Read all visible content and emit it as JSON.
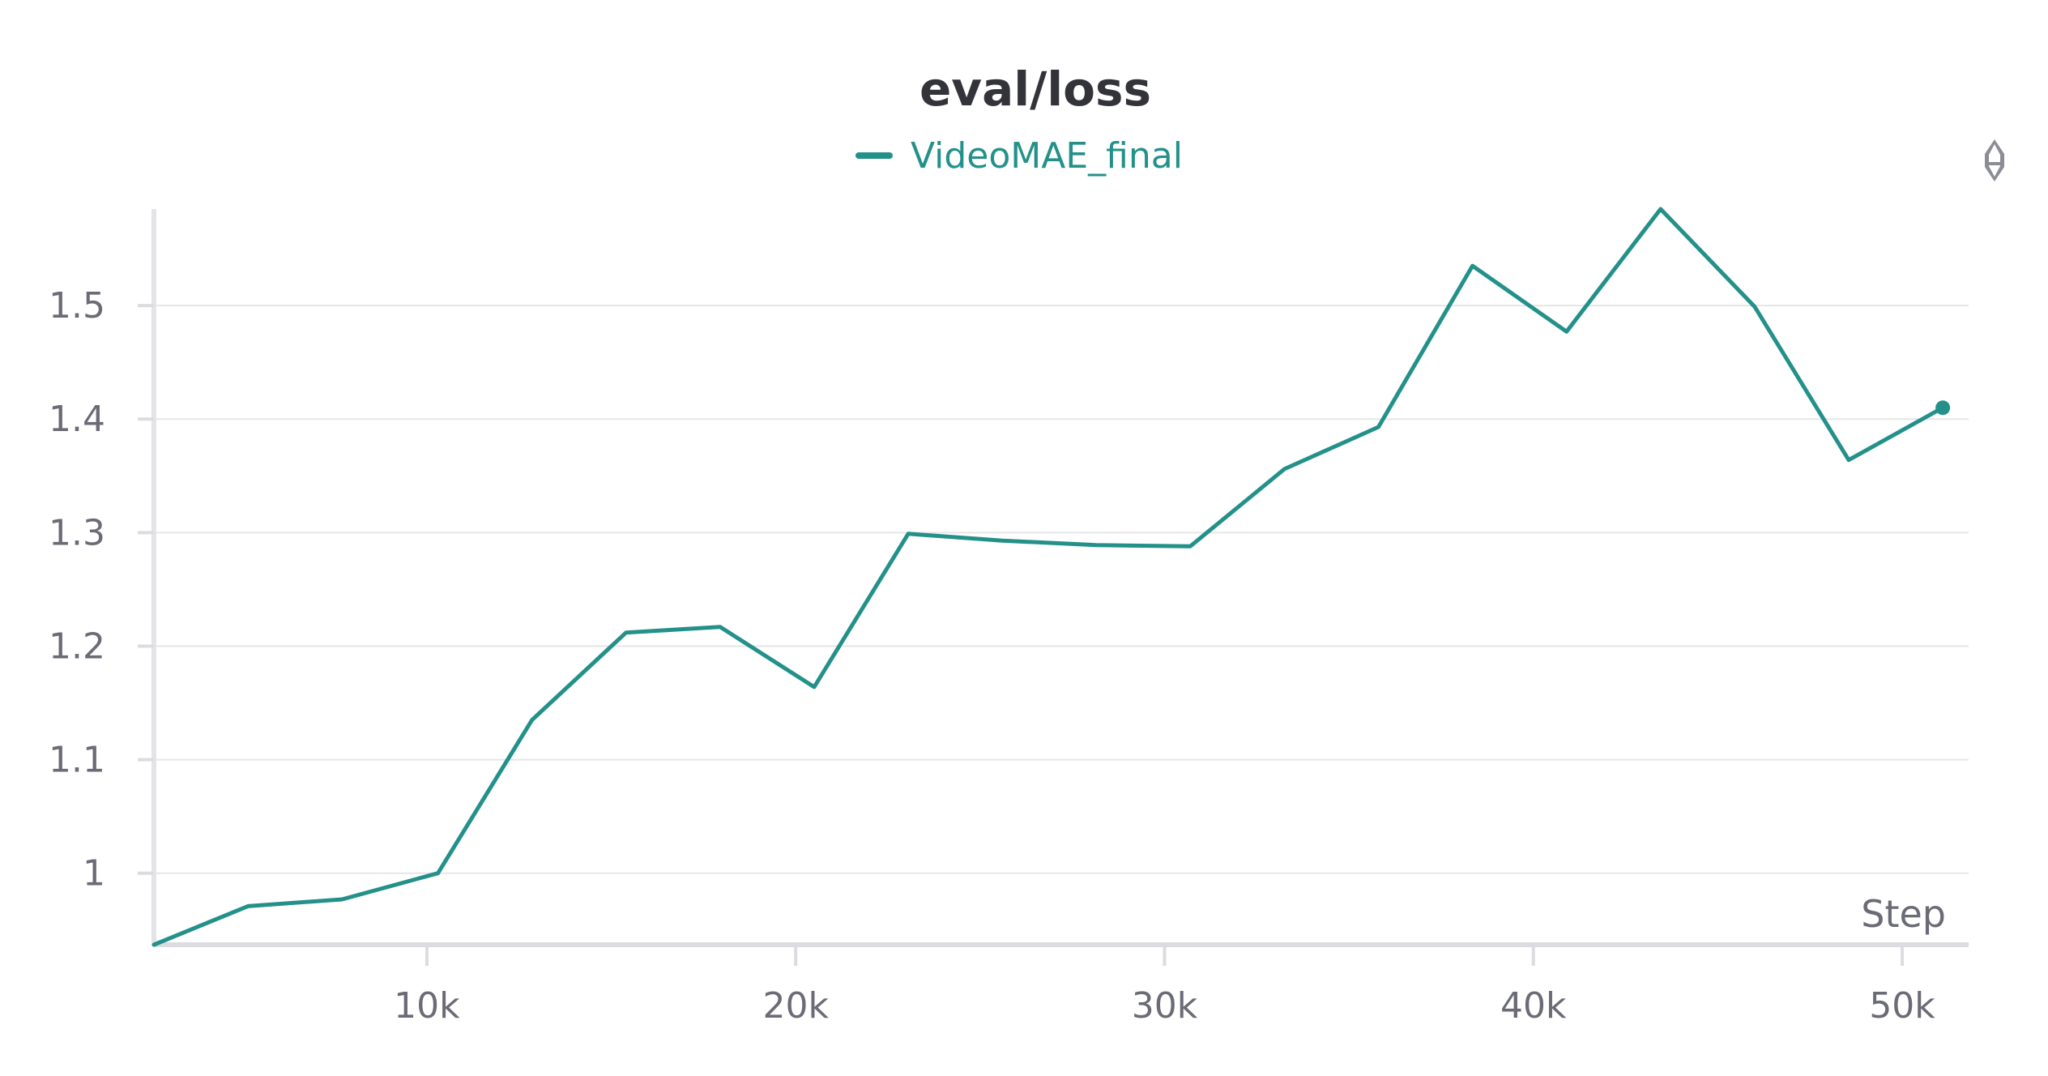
{
  "chart_data": {
    "type": "line",
    "title": "eval/loss",
    "xlabel": "Step",
    "ylabel": "",
    "xlim": [
      2600,
      51800
    ],
    "ylim": [
      0.937,
      1.585
    ],
    "x_ticks": [
      10000,
      20000,
      30000,
      40000,
      50000
    ],
    "x_tick_labels": [
      "10k",
      "20k",
      "30k",
      "40k",
      "50k"
    ],
    "y_ticks": [
      1.0,
      1.1,
      1.2,
      1.3,
      1.4,
      1.5
    ],
    "y_tick_labels": [
      "1",
      "1.1",
      "1.2",
      "1.3",
      "1.4",
      "1.5"
    ],
    "grid": true,
    "legend_position": "top-center",
    "series": [
      {
        "name": "VideoMAE_final",
        "color": "#23918a",
        "x": [
          2600,
          5150,
          7700,
          10300,
          12850,
          15400,
          17950,
          20500,
          23050,
          25600,
          28150,
          30700,
          33250,
          35800,
          38350,
          40900,
          43450,
          46000,
          48550,
          51100
        ],
        "y": [
          0.937,
          0.971,
          0.977,
          1.0,
          1.135,
          1.212,
          1.217,
          1.164,
          1.299,
          1.293,
          1.289,
          1.288,
          1.356,
          1.393,
          1.535,
          1.477,
          1.585,
          1.499,
          1.364,
          1.41
        ]
      }
    ]
  },
  "colors": {
    "series": "#23918a",
    "grid": "#e6e6e9",
    "axis": "#dcdce0",
    "text": "#6b6b76",
    "title": "#33333a"
  },
  "icons": {
    "toolbar": "drag-handle-icon"
  }
}
